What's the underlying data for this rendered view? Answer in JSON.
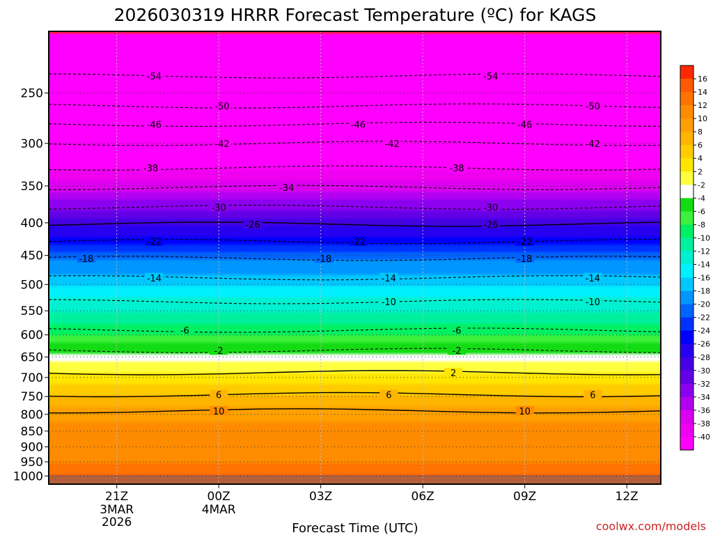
{
  "chart_data": {
    "type": "heatmap",
    "title": "2026030319 HRRR Forecast Temperature (ºC) for KAGS",
    "xlabel": "Forecast Time (UTC)",
    "ylabel": "",
    "credit": "coolwx.com/models",
    "x_ticks": [
      {
        "label": "21Z",
        "sub1": "3MAR",
        "sub2": "2026",
        "hour": 21
      },
      {
        "label": "00Z",
        "sub1": "4MAR",
        "sub2": "",
        "hour": 24
      },
      {
        "label": "03Z",
        "sub1": "",
        "sub2": "",
        "hour": 27
      },
      {
        "label": "06Z",
        "sub1": "",
        "sub2": "",
        "hour": 30
      },
      {
        "label": "09Z",
        "sub1": "",
        "sub2": "",
        "hour": 33
      },
      {
        "label": "12Z",
        "sub1": "",
        "sub2": "",
        "hour": 36
      }
    ],
    "xlim": [
      19,
      37
    ],
    "y_ticks": [
      "250",
      "300",
      "350",
      "400",
      "450",
      "500",
      "550",
      "600",
      "650",
      "700",
      "750",
      "800",
      "850",
      "900",
      "950",
      "1000"
    ],
    "ylim_hpa": [
      200,
      1030
    ],
    "colorbar": {
      "labels": [
        "16",
        "14",
        "12",
        "10",
        "8",
        "6",
        "4",
        "2",
        "-2",
        "-4",
        "-6",
        "-8",
        "-10",
        "-12",
        "-14",
        "-16",
        "-18",
        "-20",
        "-22",
        "-24",
        "-26",
        "-28",
        "-30",
        "-32",
        "-34",
        "-36",
        "-38",
        "-40"
      ],
      "colors": [
        "#ff2800",
        "#ff5a00",
        "#ff7300",
        "#ff8c00",
        "#ffa000",
        "#ffb400",
        "#ffcc00",
        "#ffe600",
        "#ffff40",
        "#ffffff",
        "#14dc14",
        "#3cf03c",
        "#00f064",
        "#00f0a0",
        "#00f0d0",
        "#00f0ff",
        "#00c8ff",
        "#0096ff",
        "#0064ff",
        "#0032ff",
        "#0000ff",
        "#2800f0",
        "#4600e6",
        "#6400e6",
        "#8c00f0",
        "#b400f0",
        "#dc00f0",
        "#f000f0",
        "#ff00ff"
      ]
    },
    "profile": [
      {
        "p": 200,
        "t": -60
      },
      {
        "p": 250,
        "t": -54
      },
      {
        "p": 300,
        "t": -43
      },
      {
        "p": 350,
        "t": -35
      },
      {
        "p": 400,
        "t": -27
      },
      {
        "p": 450,
        "t": -19
      },
      {
        "p": 500,
        "t": -14
      },
      {
        "p": 550,
        "t": -10
      },
      {
        "p": 600,
        "t": -6
      },
      {
        "p": 650,
        "t": -1
      },
      {
        "p": 700,
        "t": 3
      },
      {
        "p": 750,
        "t": 6
      },
      {
        "p": 800,
        "t": 9
      },
      {
        "p": 850,
        "t": 11
      },
      {
        "p": 900,
        "t": 11.5
      },
      {
        "p": 950,
        "t": 12
      },
      {
        "p": 1000,
        "t": 14
      },
      {
        "p": 1030,
        "t": 16
      }
    ],
    "contours": [
      {
        "value": -54,
        "dashed": true,
        "p": 235,
        "labels": [
          {
            "h": 22.1,
            "text": "-54"
          },
          {
            "h": 32.0,
            "text": "-54"
          }
        ]
      },
      {
        "value": -50,
        "dashed": true,
        "p": 262,
        "labels": [
          {
            "h": 24.1,
            "text": "-50"
          },
          {
            "h": 35.0,
            "text": "-50"
          }
        ]
      },
      {
        "value": -46,
        "dashed": true,
        "p": 280,
        "labels": [
          {
            "h": 22.1,
            "text": "-46"
          },
          {
            "h": 28.1,
            "text": "-46"
          },
          {
            "h": 33.0,
            "text": "-46"
          }
        ]
      },
      {
        "value": -42,
        "dashed": true,
        "p": 300,
        "labels": [
          {
            "h": 24.1,
            "text": "-42"
          },
          {
            "h": 29.1,
            "text": "-42"
          },
          {
            "h": 35.0,
            "text": "-42"
          }
        ]
      },
      {
        "value": -38,
        "dashed": true,
        "p": 328,
        "labels": [
          {
            "h": 22.0,
            "text": "-38"
          },
          {
            "h": 31.0,
            "text": "-38"
          }
        ]
      },
      {
        "value": -34,
        "dashed": true,
        "p": 352,
        "labels": [
          {
            "h": 26.0,
            "text": "-34"
          }
        ]
      },
      {
        "value": -30,
        "dashed": true,
        "p": 378,
        "labels": [
          {
            "h": 24.0,
            "text": "-30"
          },
          {
            "h": 32.0,
            "text": "-30"
          }
        ]
      },
      {
        "value": -26,
        "dashed": false,
        "p": 402,
        "labels": [
          {
            "h": 25.0,
            "text": "-26"
          },
          {
            "h": 32.0,
            "text": "-26"
          }
        ]
      },
      {
        "value": -22,
        "dashed": true,
        "p": 428,
        "labels": [
          {
            "h": 22.1,
            "text": "-22"
          },
          {
            "h": 28.1,
            "text": "-22"
          },
          {
            "h": 33.0,
            "text": "-22"
          }
        ]
      },
      {
        "value": -18,
        "dashed": true,
        "p": 455,
        "labels": [
          {
            "h": 20.1,
            "text": "-18"
          },
          {
            "h": 27.1,
            "text": "-18"
          },
          {
            "h": 33.0,
            "text": "-18"
          }
        ]
      },
      {
        "value": -14,
        "dashed": true,
        "p": 488,
        "labels": [
          {
            "h": 22.1,
            "text": "-14"
          },
          {
            "h": 29.0,
            "text": "-14"
          },
          {
            "h": 35.0,
            "text": "-14"
          }
        ]
      },
      {
        "value": -10,
        "dashed": true,
        "p": 532,
        "labels": [
          {
            "h": 29.0,
            "text": "-10"
          },
          {
            "h": 35.0,
            "text": "-10"
          }
        ]
      },
      {
        "value": -6,
        "dashed": true,
        "p": 590,
        "labels": [
          {
            "h": 23.0,
            "text": "-6"
          },
          {
            "h": 31.0,
            "text": "-6"
          }
        ]
      },
      {
        "value": -2,
        "dashed": true,
        "p": 635,
        "labels": [
          {
            "h": 24.0,
            "text": "-2"
          },
          {
            "h": 31.0,
            "text": "-2"
          }
        ]
      },
      {
        "value": 2,
        "dashed": false,
        "p": 688,
        "labels": [
          {
            "h": 30.9,
            "text": "2"
          }
        ]
      },
      {
        "value": 6,
        "dashed": false,
        "p": 745,
        "labels": [
          {
            "h": 24.0,
            "text": "6"
          },
          {
            "h": 29.0,
            "text": "6"
          },
          {
            "h": 35.0,
            "text": "6"
          }
        ]
      },
      {
        "value": 10,
        "dashed": false,
        "p": 790,
        "labels": [
          {
            "h": 33.0,
            "text": "10"
          },
          {
            "h": 24.0,
            "text": "10"
          }
        ]
      }
    ]
  }
}
